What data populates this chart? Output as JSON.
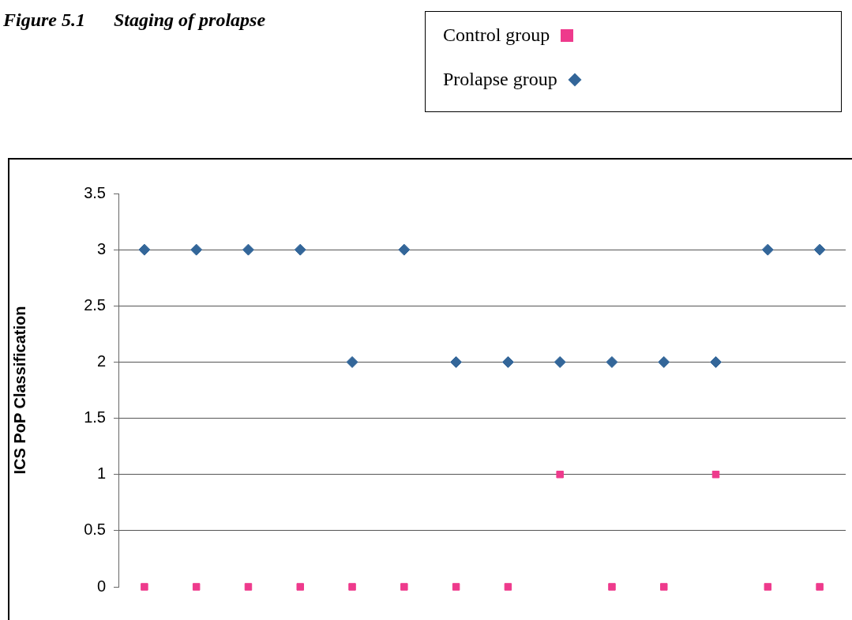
{
  "chart_data": {
    "type": "scatter",
    "title": "Figure 5.1      Staging of prolapse",
    "ylabel": "ICS PoP Classification",
    "categories": [
      null,
      null,
      null,
      null,
      null,
      null,
      null,
      null,
      null,
      null,
      null,
      null,
      null,
      null
    ],
    "series": [
      {
        "name": "Control group",
        "color": "#ee3a8c",
        "marker": "square",
        "values": [
          0,
          0,
          0,
          0,
          0,
          0,
          0,
          0,
          1,
          0,
          0,
          1,
          0,
          0
        ]
      },
      {
        "name": "Prolapse group",
        "color": "#336699",
        "marker": "diamond",
        "values": [
          3,
          3,
          3,
          3,
          2,
          3,
          2,
          2,
          2,
          2,
          2,
          2,
          3,
          3
        ]
      }
    ],
    "ylim": [
      0,
      3.5
    ],
    "yticks": [
      0,
      0.5,
      1,
      1.5,
      2,
      2.5,
      3,
      3.5
    ],
    "grid": "y",
    "legend": "top right"
  }
}
